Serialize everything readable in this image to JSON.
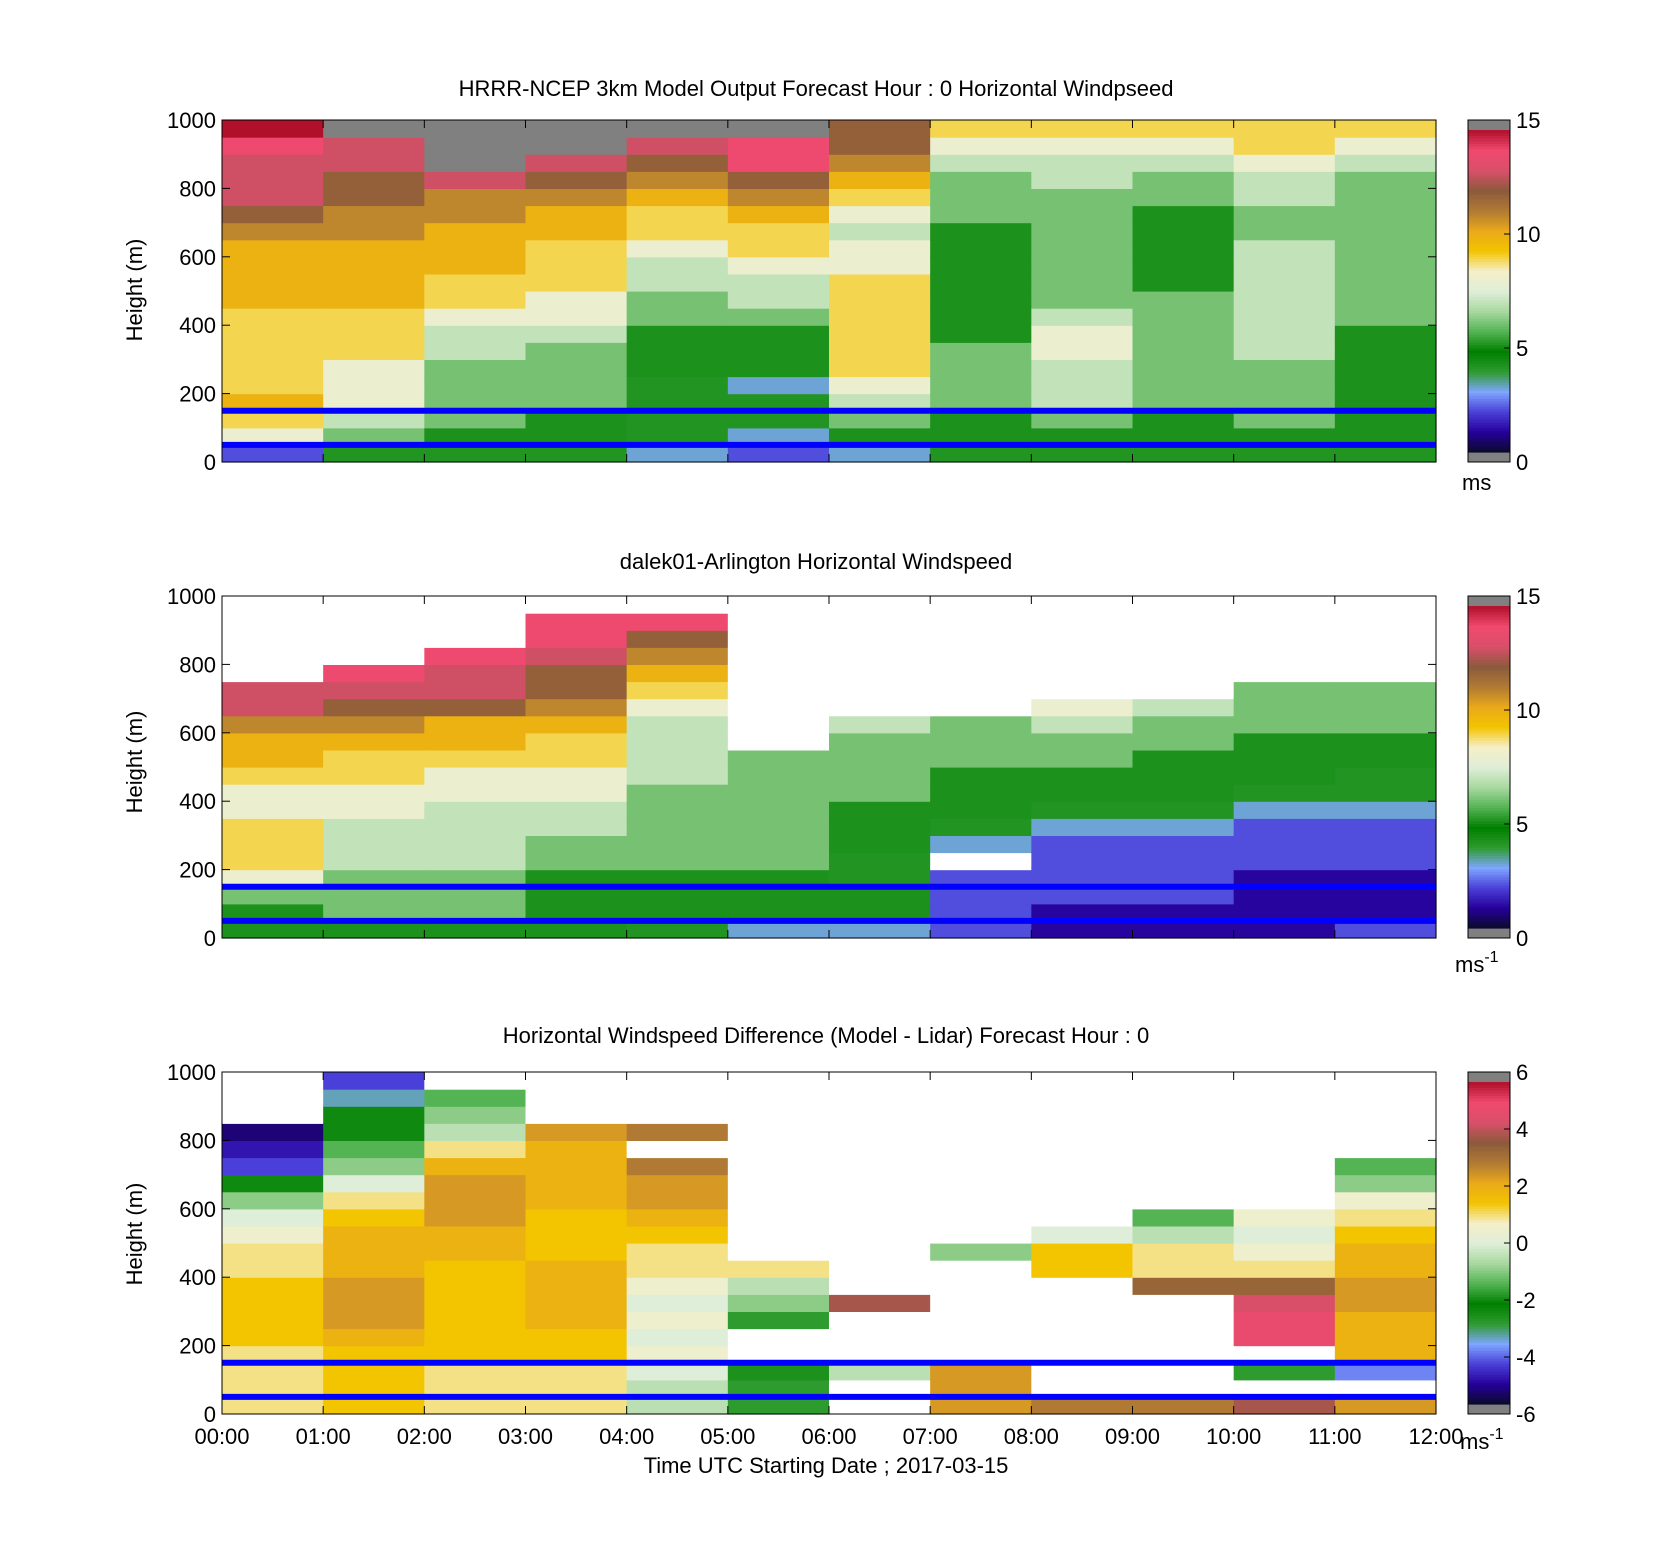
{
  "colors": {
    "missing": "#808080",
    "reference_line": "#0000ff",
    "speed_colormap": [
      "#808080",
      "#0a0a2a",
      "#26009a",
      "#4a3fd8",
      "#7ea6ff",
      "#2e9b2e",
      "#008000",
      "#54b454",
      "#a8d8a0",
      "#dfeed8",
      "#f5efc8",
      "#f3c400",
      "#e9a91a",
      "#b07a34",
      "#8c5a3c",
      "#d94f6a",
      "#f0496f",
      "#b0102a",
      "#808080"
    ],
    "diff_colormap": [
      "#808080",
      "#0a0a2a",
      "#26009a",
      "#4a3fd8",
      "#7ea6ff",
      "#2e9b2e",
      "#008000",
      "#54b454",
      "#a8d8a0",
      "#dfeed8",
      "#f5efc8",
      "#f3c400",
      "#e9a91a",
      "#b07a34",
      "#8c5a3c",
      "#d94f6a",
      "#f0496f",
      "#b0102a",
      "#808080"
    ]
  },
  "chart_data": [
    {
      "type": "heatmap",
      "title": "HRRR-NCEP 3km Model Output   Forecast Hour : 0 Horizontal Windpseed",
      "ylabel": "Height (m)",
      "xlabel": "",
      "ylim": [
        0,
        1000
      ],
      "yticks": [
        "0",
        "200",
        "400",
        "600",
        "800",
        "1000"
      ],
      "xlim_hours": [
        0,
        12
      ],
      "colorbar": {
        "min": 0,
        "max": 15,
        "ticks": [
          "0",
          "5",
          "10",
          "15"
        ],
        "unit": "ms"
      },
      "reference_heights": [
        50,
        150
      ],
      "x_hours": [
        0,
        1,
        2,
        3,
        4,
        5,
        6,
        7,
        8,
        9,
        10,
        11
      ],
      "heights": [
        25,
        75,
        125,
        175,
        225,
        275,
        325,
        375,
        425,
        475,
        525,
        575,
        625,
        675,
        725,
        775,
        825,
        875,
        925,
        975
      ],
      "values": [
        [
          2,
          8,
          9,
          10,
          9,
          9,
          9,
          9,
          9,
          10,
          10,
          10,
          10,
          11,
          12,
          13,
          13,
          13,
          14,
          15
        ],
        [
          4,
          6,
          7,
          8,
          8,
          8,
          9,
          9,
          9,
          10,
          10,
          10,
          10,
          11,
          11,
          12,
          12,
          13,
          13,
          null
        ],
        [
          4,
          5,
          6,
          6,
          6,
          6,
          7,
          7,
          8,
          9,
          9,
          10,
          10,
          10,
          11,
          11,
          13,
          null,
          null,
          null
        ],
        [
          4,
          5,
          5,
          6,
          6,
          6,
          6,
          7,
          8,
          8,
          9,
          9,
          9,
          10,
          10,
          11,
          12,
          13,
          null,
          null
        ],
        [
          3,
          4,
          4,
          4,
          4,
          5,
          5,
          5,
          6,
          6,
          7,
          7,
          8,
          9,
          9,
          10,
          11,
          12,
          13,
          null
        ],
        [
          2,
          3,
          4,
          4,
          3,
          5,
          5,
          5,
          6,
          7,
          7,
          8,
          9,
          9,
          10,
          11,
          12,
          14,
          14,
          null
        ],
        [
          3,
          5,
          6,
          7,
          8,
          9,
          9,
          9,
          9,
          9,
          9,
          8,
          8,
          7,
          8,
          9,
          10,
          11,
          12,
          12
        ],
        [
          4,
          5,
          5,
          6,
          6,
          6,
          6,
          5,
          5,
          5,
          5,
          5,
          5,
          5,
          6,
          6,
          6,
          7,
          8,
          9
        ],
        [
          4,
          5,
          6,
          7,
          7,
          7,
          8,
          8,
          7,
          6,
          6,
          6,
          6,
          6,
          6,
          6,
          7,
          7,
          8,
          9
        ],
        [
          4,
          5,
          5,
          6,
          6,
          6,
          6,
          6,
          6,
          6,
          5,
          5,
          5,
          5,
          5,
          6,
          6,
          7,
          8,
          9
        ],
        [
          4,
          5,
          6,
          6,
          6,
          6,
          7,
          7,
          7,
          7,
          7,
          7,
          7,
          6,
          6,
          7,
          7,
          8,
          9,
          9
        ],
        [
          4,
          5,
          5,
          5,
          5,
          5,
          5,
          5,
          6,
          6,
          6,
          6,
          6,
          6,
          6,
          6,
          6,
          7,
          8,
          9
        ]
      ]
    },
    {
      "type": "heatmap",
      "title": "dalek01-Arlington  Horizontal Windspeed",
      "ylabel": "Height (m)",
      "xlabel": "",
      "ylim": [
        0,
        1000
      ],
      "yticks": [
        "0",
        "200",
        "400",
        "600",
        "800",
        "1000"
      ],
      "xlim_hours": [
        0,
        12
      ],
      "colorbar": {
        "min": 0,
        "max": 15,
        "ticks": [
          "0",
          "5",
          "10",
          "15"
        ],
        "unit": "ms",
        "unit_exponent": "-1"
      },
      "reference_heights": [
        50,
        150
      ],
      "x_hours": [
        0,
        1,
        2,
        3,
        4,
        5,
        6,
        7,
        8,
        9,
        10,
        11
      ],
      "heights": [
        25,
        75,
        125,
        175,
        225,
        275,
        325,
        375,
        425,
        475,
        525,
        575,
        625,
        675,
        725,
        775,
        825,
        875,
        925,
        975
      ],
      "values": [
        [
          5,
          5,
          6,
          8,
          9,
          9,
          9,
          8,
          8,
          9,
          10,
          10,
          11,
          13,
          13,
          null,
          null,
          null,
          null,
          null
        ],
        [
          5,
          6,
          6,
          6,
          7,
          7,
          7,
          8,
          8,
          9,
          9,
          10,
          11,
          12,
          13,
          14,
          null,
          null,
          null,
          null
        ],
        [
          5,
          6,
          6,
          6,
          7,
          7,
          7,
          7,
          8,
          8,
          9,
          10,
          10,
          12,
          13,
          13,
          14,
          null,
          null,
          null
        ],
        [
          5,
          5,
          5,
          5,
          6,
          6,
          7,
          7,
          8,
          8,
          9,
          9,
          10,
          11,
          12,
          12,
          13,
          14,
          14,
          null
        ],
        [
          4,
          5,
          5,
          5,
          6,
          6,
          6,
          6,
          6,
          7,
          7,
          7,
          7,
          8,
          9,
          10,
          11,
          12,
          14,
          null
        ],
        [
          3,
          5,
          5,
          5,
          6,
          6,
          6,
          6,
          6,
          6,
          6,
          null,
          null,
          null,
          null,
          null,
          null,
          null,
          null,
          null
        ],
        [
          3,
          5,
          5,
          4,
          4,
          5,
          5,
          5,
          6,
          6,
          6,
          6,
          7,
          null,
          null,
          null,
          null,
          null,
          null,
          null
        ],
        [
          2,
          2,
          2,
          2,
          null,
          3,
          4,
          5,
          5,
          5,
          6,
          6,
          6,
          null,
          null,
          null,
          null,
          null,
          null,
          null
        ],
        [
          1,
          1,
          2,
          2,
          2,
          2,
          3,
          4,
          5,
          5,
          6,
          6,
          7,
          8,
          null,
          null,
          null,
          null,
          null,
          null
        ],
        [
          1,
          1,
          2,
          2,
          2,
          2,
          3,
          4,
          5,
          5,
          5,
          6,
          6,
          7,
          null,
          null,
          null,
          null,
          null,
          null
        ],
        [
          1,
          1,
          1,
          1,
          2,
          2,
          2,
          3,
          4,
          5,
          5,
          5,
          6,
          6,
          6,
          null,
          null,
          null,
          null,
          null
        ],
        [
          2,
          1,
          1,
          1,
          2,
          2,
          2,
          3,
          4,
          4,
          5,
          5,
          6,
          6,
          6,
          null,
          null,
          null,
          null,
          null
        ]
      ]
    },
    {
      "type": "heatmap",
      "title": "Horizontal Windspeed Difference (Model - Lidar) Forecast Hour : 0",
      "ylabel": "Height (m)",
      "xlabel": "Time UTC  Starting Date ; 2017-03-15",
      "ylim": [
        0,
        1000
      ],
      "yticks": [
        "0",
        "200",
        "400",
        "600",
        "800",
        "1000"
      ],
      "xticks": [
        "00:00",
        "01:00",
        "02:00",
        "03:00",
        "04:00",
        "05:00",
        "06:00",
        "07:00",
        "08:00",
        "09:00",
        "10:00",
        "11:00",
        "12:00"
      ],
      "xlim_hours": [
        0,
        12
      ],
      "colorbar": {
        "min": -6,
        "max": 6,
        "ticks": [
          "-6",
          "-4",
          "-2",
          "0",
          "2",
          "4",
          "6"
        ],
        "unit": "ms",
        "unit_exponent": "-1"
      },
      "reference_heights": [
        50,
        150
      ],
      "x_hours": [
        0,
        1,
        2,
        3,
        4,
        5,
        6,
        7,
        8,
        9,
        10,
        11
      ],
      "heights": [
        25,
        75,
        125,
        175,
        225,
        275,
        325,
        375,
        425,
        475,
        525,
        575,
        625,
        675,
        725,
        775,
        825,
        875,
        925,
        975
      ],
      "values": [
        [
          1,
          1,
          1,
          1,
          1.5,
          1.5,
          1.5,
          1.5,
          1,
          1,
          0.5,
          0,
          -1,
          -2.5,
          -4.5,
          -5,
          -5.5,
          null,
          null,
          null
        ],
        [
          1.5,
          1.5,
          1.5,
          1.5,
          2,
          2.5,
          2.5,
          2.5,
          2,
          2,
          2,
          1.5,
          1,
          0,
          -1,
          -1.5,
          -2.5,
          -2.5,
          -3.5,
          -4.5
        ],
        [
          1,
          1,
          1,
          1.5,
          1.5,
          1.5,
          1.5,
          1.5,
          1.5,
          2,
          2,
          2.5,
          2.5,
          2.5,
          2,
          1,
          -0.5,
          -1,
          -1.5,
          null
        ],
        [
          1,
          1,
          1,
          1.5,
          1.5,
          2,
          2,
          2,
          2,
          1.5,
          1.5,
          1.5,
          2,
          2,
          2,
          2,
          2.5,
          null,
          null,
          null
        ],
        [
          -0.5,
          -0.5,
          0,
          0.5,
          0,
          0.5,
          0,
          0.5,
          1,
          1,
          1.5,
          2,
          2.5,
          2.5,
          3,
          null,
          3,
          null,
          null,
          null
        ],
        [
          -3,
          -3,
          -2,
          null,
          null,
          -3,
          -1,
          -0.5,
          1,
          null,
          null,
          null,
          null,
          null,
          null,
          null,
          null,
          null,
          null,
          null
        ],
        [
          null,
          null,
          -0.5,
          null,
          null,
          null,
          4,
          null,
          null,
          null,
          null,
          null,
          null,
          null,
          null,
          null,
          null,
          null,
          null,
          null
        ],
        [
          2.5,
          2.5,
          2.5,
          null,
          null,
          null,
          null,
          null,
          null,
          -1,
          null,
          null,
          null,
          null,
          null,
          null,
          null,
          null,
          null,
          null
        ],
        [
          3,
          null,
          null,
          null,
          null,
          null,
          null,
          null,
          1.5,
          1.5,
          0,
          null,
          null,
          null,
          null,
          null,
          null,
          null,
          null,
          null
        ],
        [
          3,
          null,
          null,
          null,
          null,
          null,
          null,
          3.5,
          1,
          1,
          -0.5,
          -1.5,
          null,
          null,
          null,
          null,
          null,
          null,
          null,
          null
        ],
        [
          4,
          null,
          -3,
          null,
          5,
          5,
          4.5,
          3.5,
          1,
          0.5,
          0,
          0.5,
          null,
          null,
          null,
          null,
          null,
          null,
          null,
          null
        ],
        [
          2.5,
          null,
          -4,
          2,
          2,
          2,
          2.5,
          2.5,
          2,
          2,
          1.5,
          1,
          0.5,
          -1,
          -1.5,
          null,
          null,
          null,
          null,
          null
        ]
      ]
    }
  ]
}
